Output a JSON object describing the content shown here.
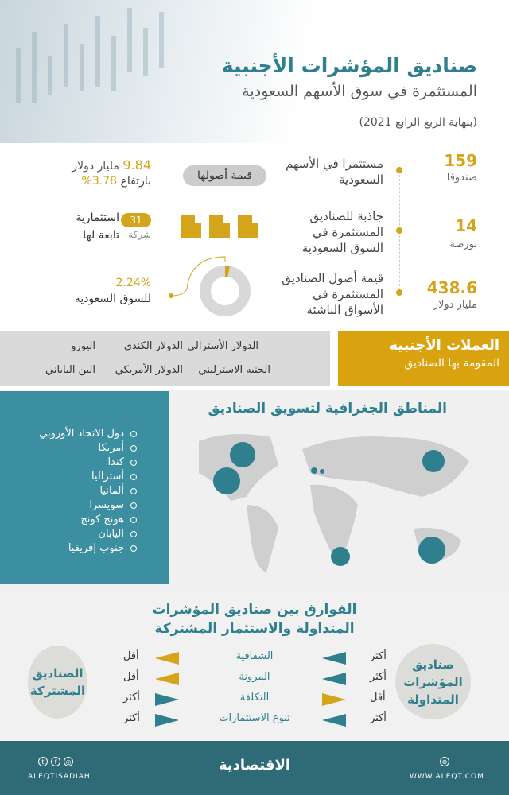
{
  "header": {
    "title": "صناديق المؤشرات الأجنبية",
    "subtitle": "المستثمرة في سوق الأسهم السعودية",
    "period": "(بنهاية الربع الرابع 2021)"
  },
  "stats": [
    {
      "value": "159",
      "unit": "صندوقا",
      "desc": "مستثمرا في الأسهم السعودية"
    },
    {
      "value": "14",
      "unit": "بورصة",
      "desc": "جاذبة للصناديق المستثمرة في السوق السعودية"
    },
    {
      "value": "438.6",
      "unit": "مليار دولار",
      "desc": "قيمة أصول الصناديق المستثمرة في الأسواق الناشئة"
    }
  ],
  "assets": {
    "pill": "قيمة أصولها",
    "value": "9.84",
    "unit": "مليار دولار",
    "rise_label": "بارتفاع",
    "rise": "3.78%"
  },
  "companies": {
    "count": "31",
    "label1": "استثمارية",
    "label2": "شركة",
    "label3": "تابعة لها"
  },
  "share": {
    "value": "2.24%",
    "label": "للسوق السعودية",
    "fraction": 0.0224
  },
  "currencies": {
    "title": "العملات الأجنبية",
    "subtitle": "المقومة بها الصناديق",
    "items": [
      "الدولار الأسترالي",
      "الدولار الكندي",
      "اليورو",
      "الجنيه الاسترليني",
      "الدولار الأمريكي",
      "الين الياباني"
    ]
  },
  "regions": {
    "title": "المناطق الجغرافية لتسويق الصناديق",
    "items": [
      "دول الاتحاد الأوروبي",
      "أمريكا",
      "كندا",
      "أستراليا",
      "ألمانيا",
      "سويسرا",
      "هونج كونج",
      "اليابان",
      "جنوب إفريقيا"
    ]
  },
  "comparison": {
    "title1": "الفوارق بين صناديق المؤشرات",
    "title2": "المتداولة والاستثمار المشتركة",
    "etf": "صناديق المؤشرات المتداولة",
    "mutual": "الصناديق المشتركة",
    "rows": [
      {
        "criterion": "الشفافية",
        "etf": "أكثر",
        "mutual": "أقل"
      },
      {
        "criterion": "المرونة",
        "etf": "أكثر",
        "mutual": "أقل"
      },
      {
        "criterion": "التكلفة",
        "etf": "أقل",
        "mutual": "أكثر"
      },
      {
        "criterion": "تنوع الاستثمارات",
        "etf": "أكثر",
        "mutual": "أكثر"
      }
    ]
  },
  "footer": {
    "handle": "ALEQTISADIAH",
    "logo": "الاقتصادية",
    "website": "WWW.ALEQT.COM"
  },
  "colors": {
    "teal": "#2f7f8f",
    "gold": "#d4a41a",
    "footer": "#2f6b76"
  }
}
